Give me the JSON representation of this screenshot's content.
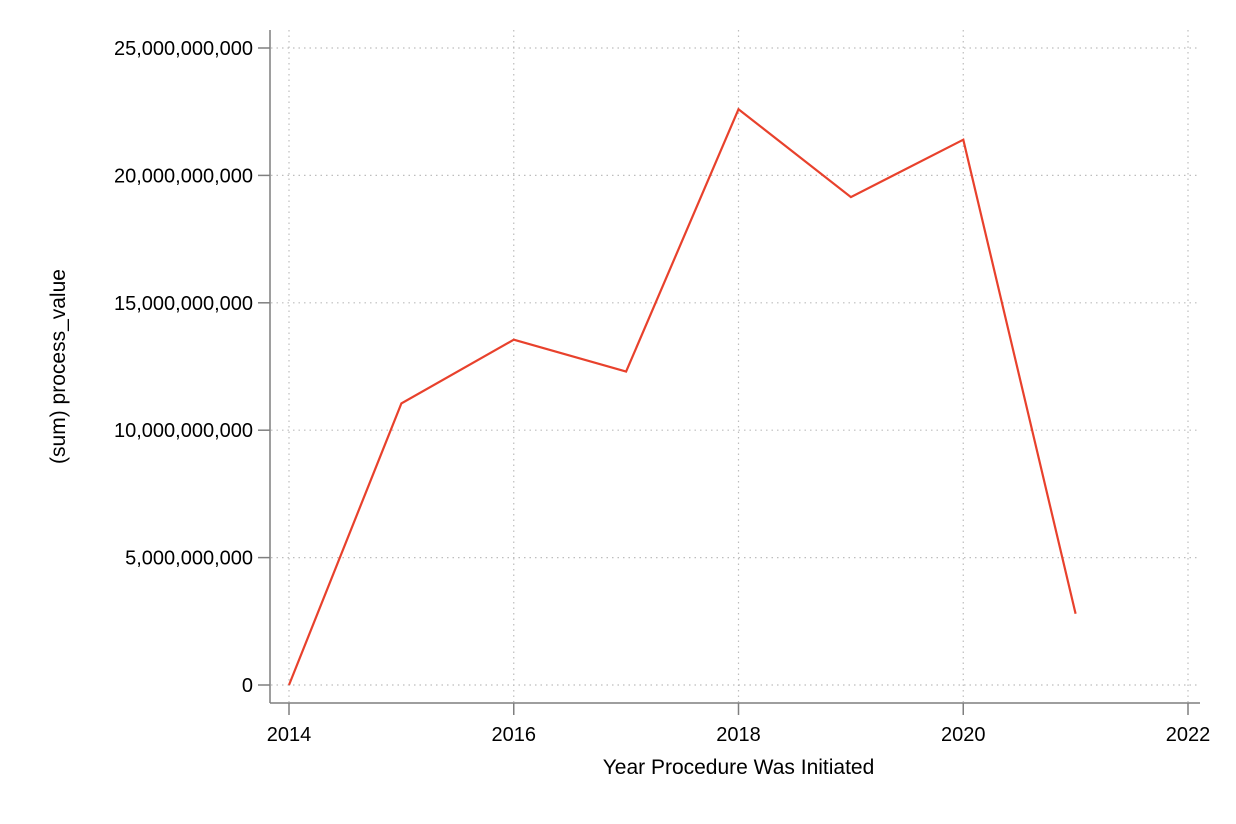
{
  "chart_data": {
    "type": "line",
    "title": "",
    "xlabel": "Year Procedure Was Initiated",
    "ylabel": "(sum) process_value",
    "xlim": [
      2014,
      2022
    ],
    "ylim": [
      0,
      25000000000
    ],
    "x_ticks": [
      2014,
      2016,
      2018,
      2020,
      2022
    ],
    "x_tick_labels": [
      "2014",
      "2016",
      "2018",
      "2020",
      "2022"
    ],
    "y_ticks": [
      0,
      5000000000,
      10000000000,
      15000000000,
      20000000000,
      25000000000
    ],
    "y_tick_labels": [
      "0",
      "5,000,000,000",
      "10,000,000,000",
      "15,000,000,000",
      "20,000,000,000",
      "25,000,000,000"
    ],
    "grid": true,
    "legend": "none",
    "series": [
      {
        "color": "#e8412c",
        "x": [
          2014,
          2015,
          2016,
          2017,
          2018,
          2019,
          2020,
          2021
        ],
        "values": [
          0,
          11050000000,
          13550000000,
          12300000000,
          22600000000,
          19150000000,
          21400000000,
          2800000000
        ]
      }
    ],
    "axis_color": "#7f7f7f",
    "grid_color": "#bdbdbd"
  }
}
